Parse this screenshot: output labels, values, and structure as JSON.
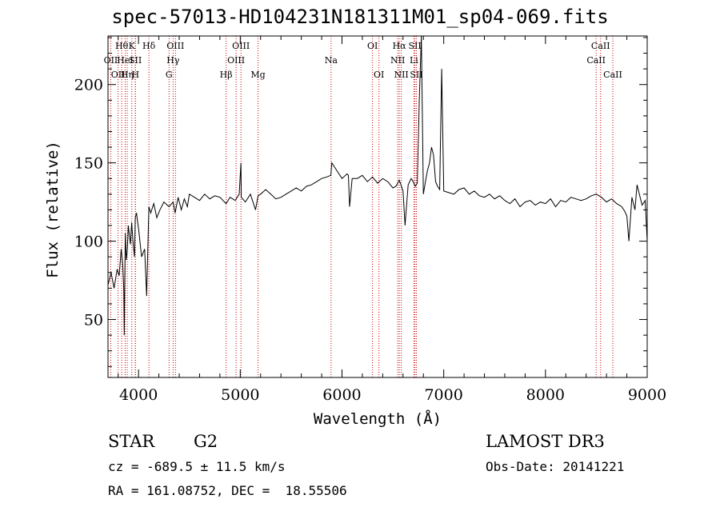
{
  "chart_data": {
    "type": "line",
    "title": "spec-57013-HD104231N181311M01_sp04-069.fits",
    "xlabel": "Wavelength (Å)",
    "ylabel": "Flux (relative)",
    "xlim": [
      3700,
      9000
    ],
    "ylim": [
      13,
      231
    ],
    "xticks": [
      4000,
      5000,
      6000,
      7000,
      8000,
      9000
    ],
    "yticks": [
      50,
      100,
      150,
      200
    ],
    "grid": false,
    "line_color": "#000000",
    "marker_color": "#cc0000",
    "series": [
      {
        "values_x": [
          3700,
          3730,
          3760,
          3790,
          3810,
          3830,
          3845,
          3855,
          3860,
          3870,
          3880,
          3890,
          3900,
          3920,
          3933,
          3945,
          3960,
          3968,
          3980,
          4000,
          4030,
          4060,
          4080,
          4102,
          4120,
          4150,
          4180,
          4210,
          4250,
          4300,
          4340,
          4360,
          4390,
          4420,
          4450,
          4480,
          4500,
          4550,
          4600,
          4650,
          4700,
          4750,
          4800,
          4861,
          4900,
          4950,
          4990,
          5007,
          5010,
          5050,
          5100,
          5150,
          5175,
          5200,
          5250,
          5300,
          5350,
          5400,
          5450,
          5500,
          5550,
          5600,
          5650,
          5700,
          5750,
          5800,
          5850,
          5890,
          5900,
          5950,
          6000,
          6050,
          6063,
          6075,
          6100,
          6150,
          6200,
          6250,
          6300,
          6350,
          6400,
          6450,
          6500,
          6530,
          6563,
          6600,
          6620,
          6650,
          6680,
          6700,
          6720,
          6740,
          6760,
          6780,
          6800,
          6820,
          6840,
          6860,
          6880,
          6900,
          6920,
          6940,
          6960,
          6980,
          7000,
          7050,
          7100,
          7150,
          7200,
          7250,
          7300,
          7350,
          7400,
          7450,
          7500,
          7550,
          7600,
          7650,
          7700,
          7750,
          7800,
          7850,
          7900,
          7950,
          8000,
          8050,
          8100,
          8150,
          8200,
          8250,
          8300,
          8350,
          8400,
          8450,
          8500,
          8550,
          8600,
          8650,
          8700,
          8750,
          8780,
          8800,
          8820,
          8850,
          8880,
          8900,
          8950,
          8980,
          9000
        ],
        "values_y": [
          72,
          80,
          70,
          82,
          78,
          95,
          85,
          70,
          40,
          105,
          88,
          95,
          110,
          98,
          112,
          100,
          90,
          115,
          118,
          108,
          90,
          95,
          65,
          122,
          118,
          124,
          115,
          120,
          125,
          122,
          125,
          118,
          128,
          120,
          127,
          122,
          130,
          128,
          126,
          130,
          127,
          129,
          128,
          124,
          128,
          126,
          130,
          150,
          128,
          125,
          130,
          120,
          129,
          130,
          133,
          130,
          127,
          128,
          130,
          132,
          134,
          132,
          135,
          136,
          138,
          140,
          141,
          142,
          150,
          145,
          140,
          143,
          142,
          122,
          140,
          140,
          142,
          138,
          141,
          137,
          140,
          138,
          134,
          135,
          139,
          132,
          110,
          136,
          140,
          138,
          135,
          137,
          190,
          231,
          130,
          138,
          145,
          150,
          160,
          155,
          138,
          135,
          133,
          210,
          132,
          131,
          130,
          133,
          134,
          130,
          132,
          129,
          128,
          130,
          127,
          129,
          126,
          124,
          127,
          122,
          125,
          126,
          123,
          125,
          124,
          127,
          122,
          126,
          125,
          128,
          127,
          126,
          127,
          129,
          130,
          128,
          125,
          127,
          124,
          122,
          119,
          116,
          100,
          128,
          120,
          136,
          123,
          126,
          100
        ]
      }
    ],
    "line_markers": [
      {
        "x": 3727,
        "label": "OII",
        "row": 1
      },
      {
        "x": 3799,
        "label": "OII",
        "row": 2
      },
      {
        "x": 3835,
        "label": "Hθ",
        "row": 0
      },
      {
        "x": 3869,
        "label": "HeI",
        "row": 1
      },
      {
        "x": 3889,
        "label": "Hη",
        "row": 2
      },
      {
        "x": 3934,
        "label": "K",
        "row": 0
      },
      {
        "x": 3968,
        "label": "SII",
        "row": 1
      },
      {
        "x": 3970,
        "label": "H",
        "row": 2
      },
      {
        "x": 4102,
        "label": "Hδ",
        "row": 0
      },
      {
        "x": 4300,
        "label": "G",
        "row": 2
      },
      {
        "x": 4340,
        "label": "Hγ",
        "row": 1
      },
      {
        "x": 4363,
        "label": "OIII",
        "row": 0
      },
      {
        "x": 4861,
        "label": "Hβ",
        "row": 2
      },
      {
        "x": 4959,
        "label": "OIII",
        "row": 1
      },
      {
        "x": 5007,
        "label": "OIII",
        "row": 0
      },
      {
        "x": 5175,
        "label": "Mg",
        "row": 2
      },
      {
        "x": 5893,
        "label": "Na",
        "row": 1
      },
      {
        "x": 6300,
        "label": "OI",
        "row": 0
      },
      {
        "x": 6363,
        "label": "OI",
        "row": 2
      },
      {
        "x": 6548,
        "label": "NII",
        "row": 1
      },
      {
        "x": 6563,
        "label": "Hα",
        "row": 0
      },
      {
        "x": 6583,
        "label": "NII",
        "row": 2
      },
      {
        "x": 6707,
        "label": "Li",
        "row": 1
      },
      {
        "x": 6717,
        "label": "SII",
        "row": 0
      },
      {
        "x": 6731,
        "label": "SII",
        "row": 2
      },
      {
        "x": 8498,
        "label": "CaII",
        "row": 1
      },
      {
        "x": 8542,
        "label": "CaII",
        "row": 0
      },
      {
        "x": 8662,
        "label": "CaII",
        "row": 2
      }
    ]
  },
  "info": {
    "class": "STAR",
    "subclass": "G2",
    "survey": "LAMOST DR3",
    "cz": "cz = -689.5 ± 11.5 km/s",
    "obs_date": "Obs-Date: 20141221",
    "radec": "RA = 161.08752, DEC =  18.55506"
  }
}
